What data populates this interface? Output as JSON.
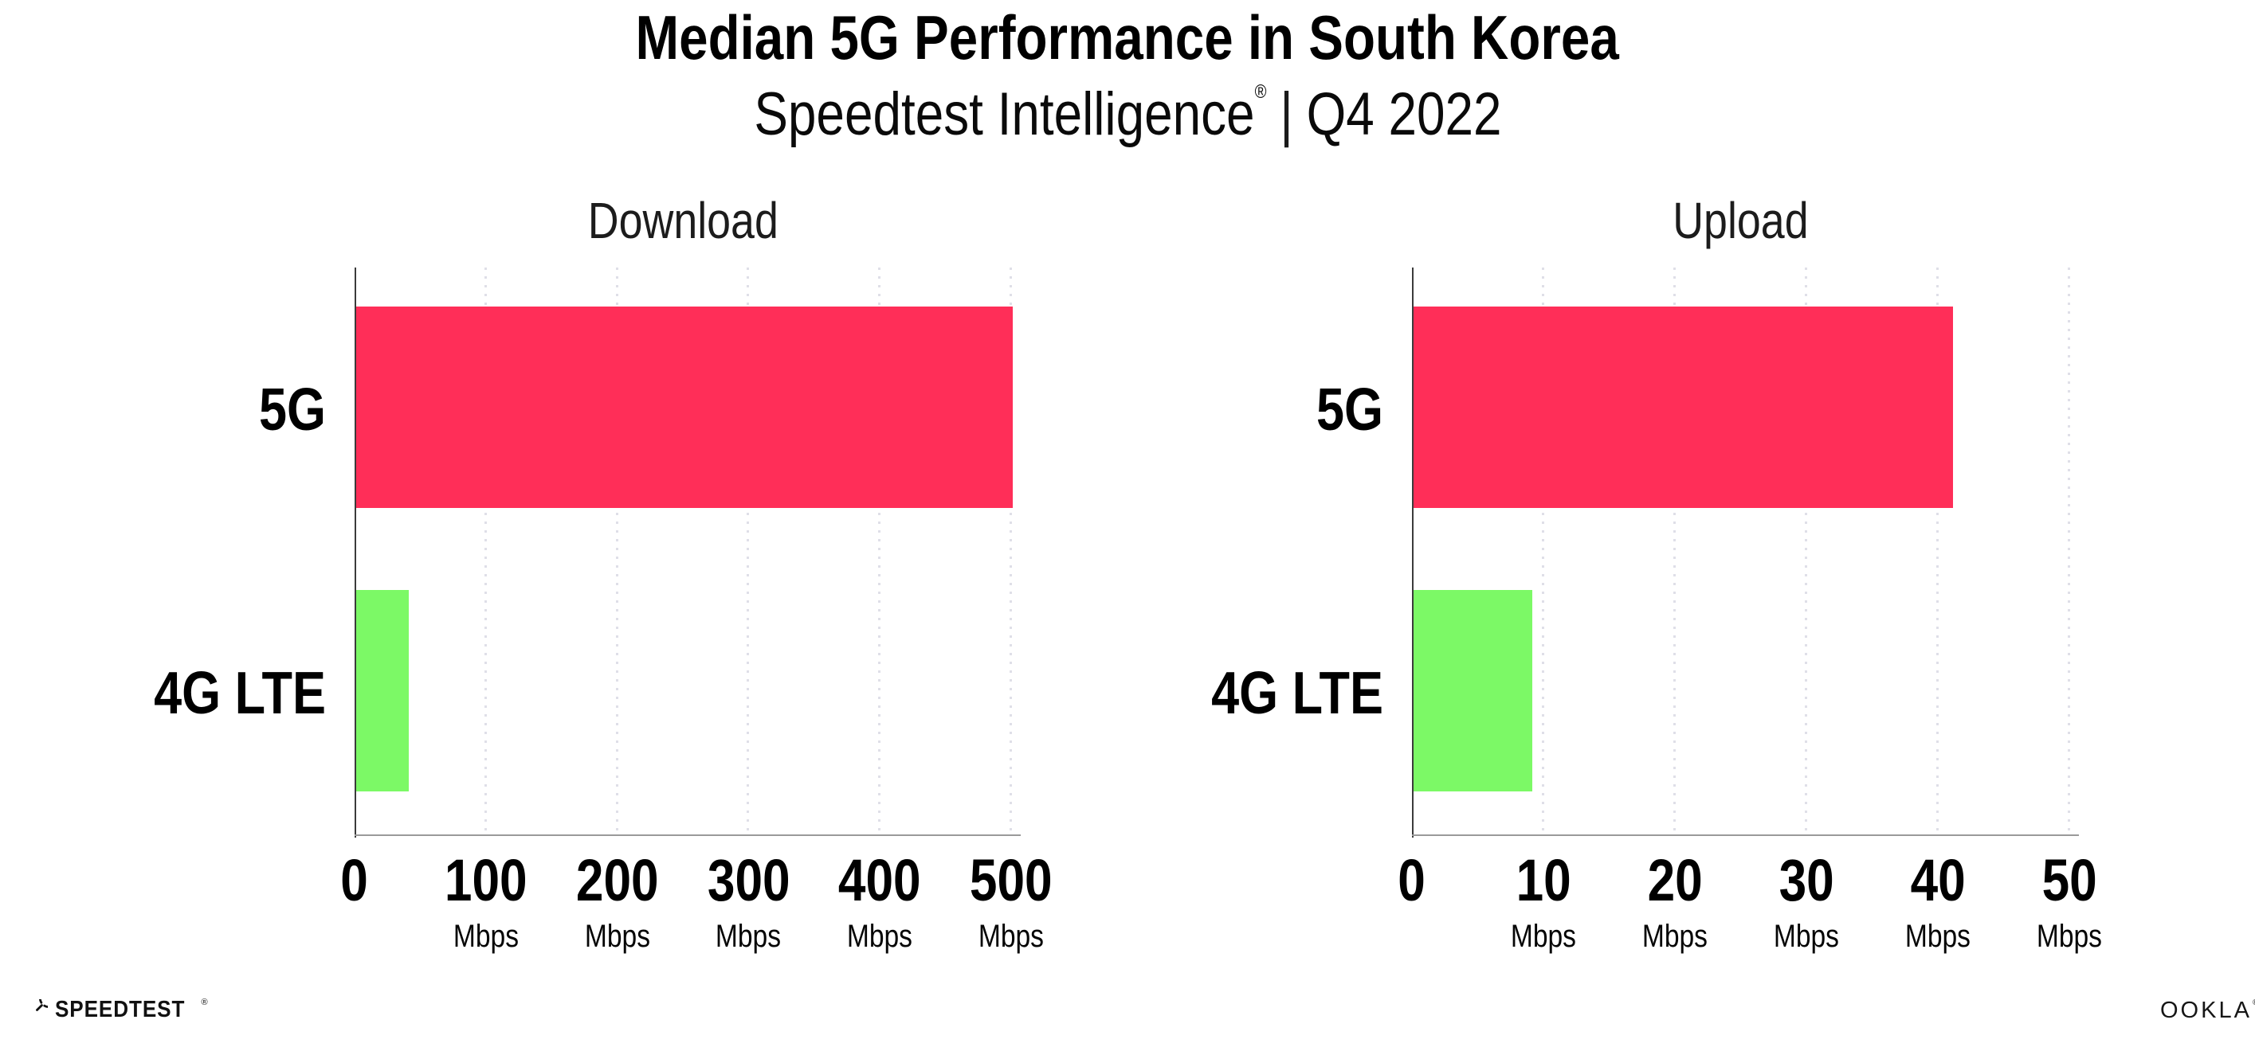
{
  "header": {
    "title": "Median 5G Performance in South Korea",
    "subtitle_brand": "Speedtest Intelligence",
    "subtitle_reg": "®",
    "subtitle_sep": "|",
    "subtitle_period": "Q4 2022"
  },
  "chart_data": [
    {
      "type": "bar",
      "orientation": "horizontal",
      "title": "Download",
      "categories": [
        "5G",
        "4G LTE"
      ],
      "values": [
        500,
        40
      ],
      "unit": "Mbps",
      "xlabel": "",
      "ylabel": "",
      "xlim": [
        0,
        500
      ],
      "xticks": [
        0,
        100,
        200,
        300,
        400,
        500
      ],
      "bar_colors": [
        "#FF2E58",
        "#7CF966"
      ],
      "grid": "vertical-dotted",
      "legend": "none"
    },
    {
      "type": "bar",
      "orientation": "horizontal",
      "title": "Upload",
      "categories": [
        "5G",
        "4G LTE"
      ],
      "values": [
        41,
        9
      ],
      "unit": "Mbps",
      "xlabel": "",
      "ylabel": "",
      "xlim": [
        0,
        50
      ],
      "xticks": [
        0,
        10,
        20,
        30,
        40,
        50
      ],
      "bar_colors": [
        "#FF2E58",
        "#7CF966"
      ],
      "grid": "vertical-dotted",
      "legend": "none"
    }
  ],
  "colors": {
    "bar_5g": "#FF2E58",
    "bar_4g_lte": "#7CF966",
    "gridline": "#DFDFE8",
    "y_axis": "#3B3B3B",
    "x_axis": "#9A9A9A",
    "text": "#000000"
  },
  "footer": {
    "speedtest_label": "SPEEDTEST",
    "speedtest_reg": "®",
    "ookla_label": "OOKLA",
    "ookla_reg": "®"
  }
}
